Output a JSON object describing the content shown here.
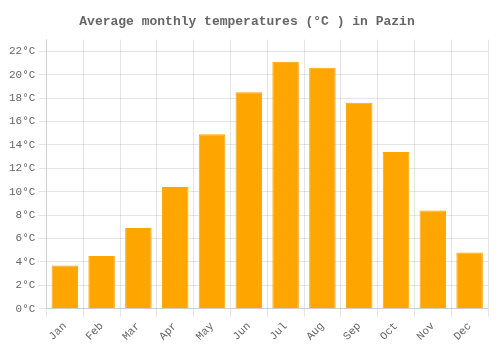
{
  "chart_data": {
    "type": "bar",
    "title": "Average monthly temperatures (°C ) in Pazin",
    "categories": [
      "Jan",
      "Feb",
      "Mar",
      "Apr",
      "May",
      "Jun",
      "Jul",
      "Aug",
      "Sep",
      "Oct",
      "Nov",
      "Dec"
    ],
    "values": [
      3.7,
      4.5,
      6.9,
      10.4,
      14.9,
      18.5,
      21.1,
      20.6,
      17.6,
      13.4,
      8.4,
      4.8
    ],
    "color": "#FFA500",
    "ylim": [
      0,
      23
    ],
    "yticks": [
      {
        "value": 0,
        "label": "0°C"
      },
      {
        "value": 2,
        "label": "2°C"
      },
      {
        "value": 4,
        "label": "4°C"
      },
      {
        "value": 6,
        "label": "6°C"
      },
      {
        "value": 8,
        "label": "8°C"
      },
      {
        "value": 10,
        "label": "10°C"
      },
      {
        "value": 12,
        "label": "12°C"
      },
      {
        "value": 14,
        "label": "14°C"
      },
      {
        "value": 16,
        "label": "16°C"
      },
      {
        "value": 18,
        "label": "18°C"
      },
      {
        "value": 20,
        "label": "20°C"
      },
      {
        "value": 22,
        "label": "22°C"
      }
    ],
    "grid": true
  }
}
